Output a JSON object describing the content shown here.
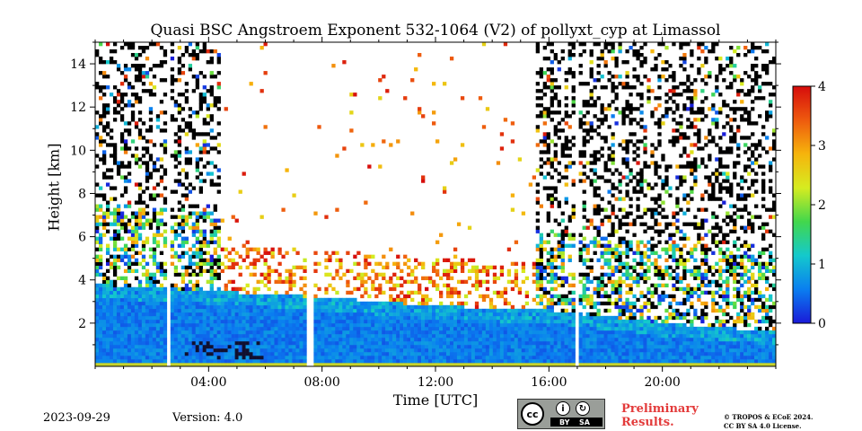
{
  "chart_data": {
    "type": "heatmap",
    "title": "Quasi BSC Angstroem Exponent 532-1064 (V2) of pollyxt_cyp at Limassol",
    "xlabel": "Time [UTC]",
    "ylabel": "Height [km]",
    "xlim": [
      0,
      24
    ],
    "ylim": [
      0,
      15
    ],
    "x_ticks": [
      {
        "value": 4,
        "label": "04:00"
      },
      {
        "value": 8,
        "label": "08:00"
      },
      {
        "value": 12,
        "label": "12:00"
      },
      {
        "value": 16,
        "label": "16:00"
      },
      {
        "value": 20,
        "label": "20:00"
      }
    ],
    "y_ticks": [
      {
        "value": 2,
        "label": "2"
      },
      {
        "value": 4,
        "label": "4"
      },
      {
        "value": 6,
        "label": "6"
      },
      {
        "value": 8,
        "label": "8"
      },
      {
        "value": 10,
        "label": "10"
      },
      {
        "value": 12,
        "label": "12"
      },
      {
        "value": 14,
        "label": "14"
      }
    ],
    "colorbar": {
      "min": 0,
      "max": 4,
      "ticks": [
        "0",
        "1",
        "2",
        "3",
        "4"
      ],
      "colors": [
        "#1a1ad8",
        "#0a7ef0",
        "#14c9cc",
        "#42d74c",
        "#d6ec20",
        "#f6b40c",
        "#ee5a0e",
        "#d60c0c"
      ]
    },
    "data_gaps_utc": [
      2.6,
      7.6,
      17.0
    ],
    "aerosol_layer_top_km": [
      {
        "time": 0,
        "height": 3.8
      },
      {
        "time": 4,
        "height": 3.5
      },
      {
        "time": 8,
        "height": 3.2
      },
      {
        "time": 12,
        "height": 2.8
      },
      {
        "time": 16,
        "height": 2.6
      },
      {
        "time": 20,
        "height": 2.0
      },
      {
        "time": 24,
        "height": 1.6
      }
    ],
    "daylight_noise_range_utc": [
      4,
      16
    ]
  },
  "footer": {
    "date": "2023-09-29",
    "version": "Version: 4.0",
    "license_cc": "cc",
    "license_by": "BY",
    "license_sa": "SA",
    "preliminary_line1": "Preliminary",
    "preliminary_line2": "Results.",
    "copyright_line1": "© TROPOS & ECoE 2024.",
    "copyright_line2": "CC BY SA 4.0 License."
  }
}
